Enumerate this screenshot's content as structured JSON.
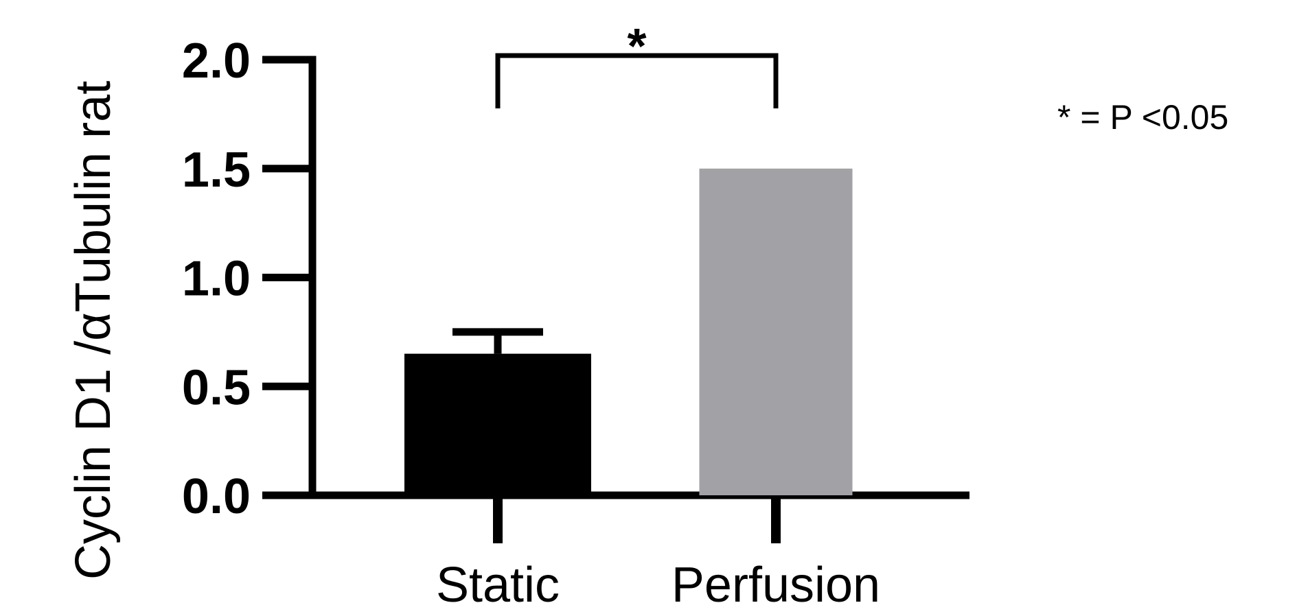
{
  "chart_data": {
    "type": "bar",
    "title": "",
    "xlabel": "",
    "ylabel": "Cyclin D1 /αTubulin rat",
    "categories": [
      "Static",
      "Perfusion"
    ],
    "values": [
      0.65,
      1.5
    ],
    "error_upper": [
      0.75,
      null
    ],
    "bar_colors": [
      "#000000",
      "#a2a1a5"
    ],
    "ylim": [
      0,
      2.0
    ],
    "yticks": [
      0.0,
      0.5,
      1.0,
      1.5,
      2.0
    ],
    "ytick_labels": [
      "0.0",
      "0.5",
      "1.0",
      "1.5",
      "2.0"
    ],
    "grid": false,
    "significance": {
      "between": [
        "Static",
        "Perfusion"
      ],
      "marker": "*",
      "note": "* = P <0.05"
    }
  }
}
